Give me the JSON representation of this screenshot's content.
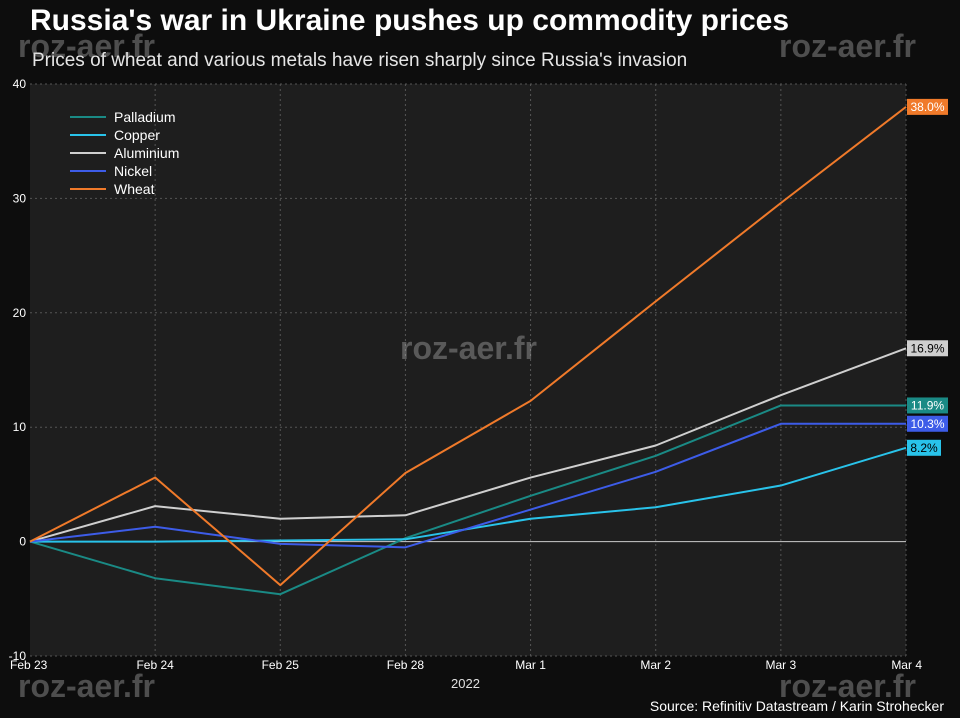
{
  "header": {
    "title": "Russia's war in Ukraine pushes up commodity prices",
    "subtitle": "Prices of wheat and various metals have risen sharply since Russia's invasion"
  },
  "watermark": "roz-aer.fr",
  "footer": {
    "source": "Source: Refinitiv Datastream / Karin Strohecker",
    "year": "2022"
  },
  "colors": {
    "background": "#0d0d0d",
    "plot_background": "#1e1e1e",
    "grid": "#555555",
    "zero_line": "#cccccc"
  },
  "chart_data": {
    "type": "line",
    "title": "Russia's war in Ukraine pushes up commodity prices",
    "subtitle": "Prices of wheat and various metals have risen sharply since Russia's invasion",
    "xlabel": "2022",
    "ylabel": "",
    "categories": [
      "Feb 23",
      "Feb 24",
      "Feb 25",
      "Feb 28",
      "Mar 1",
      "Mar 2",
      "Mar 3",
      "Mar 4"
    ],
    "ylim": [
      -10,
      40
    ],
    "yticks": [
      -10,
      0,
      10,
      20,
      30,
      40
    ],
    "grid": true,
    "legend_position": "top-left",
    "series": [
      {
        "name": "Palladium",
        "color": "#1a8a85",
        "end_label": "11.9%",
        "values": [
          0,
          -3.2,
          -4.6,
          0.3,
          4.0,
          7.5,
          11.9,
          11.9
        ]
      },
      {
        "name": "Copper",
        "color": "#29c3ea",
        "end_label": "8.2%",
        "values": [
          0,
          0.0,
          0.1,
          0.2,
          2.0,
          3.0,
          4.9,
          8.2
        ]
      },
      {
        "name": "Aluminium",
        "color": "#cfcfcf",
        "end_label": "16.9%",
        "values": [
          0,
          3.1,
          2.0,
          2.3,
          5.6,
          8.4,
          12.8,
          16.9
        ]
      },
      {
        "name": "Nickel",
        "color": "#3d5ce8",
        "end_label": "10.3%",
        "values": [
          0,
          1.3,
          -0.2,
          -0.5,
          2.8,
          6.1,
          10.3,
          10.3
        ]
      },
      {
        "name": "Wheat",
        "color": "#f07a2a",
        "end_label": "38.0%",
        "values": [
          0,
          5.6,
          -3.8,
          6.0,
          12.3,
          21.0,
          29.6,
          38.0
        ]
      }
    ]
  }
}
